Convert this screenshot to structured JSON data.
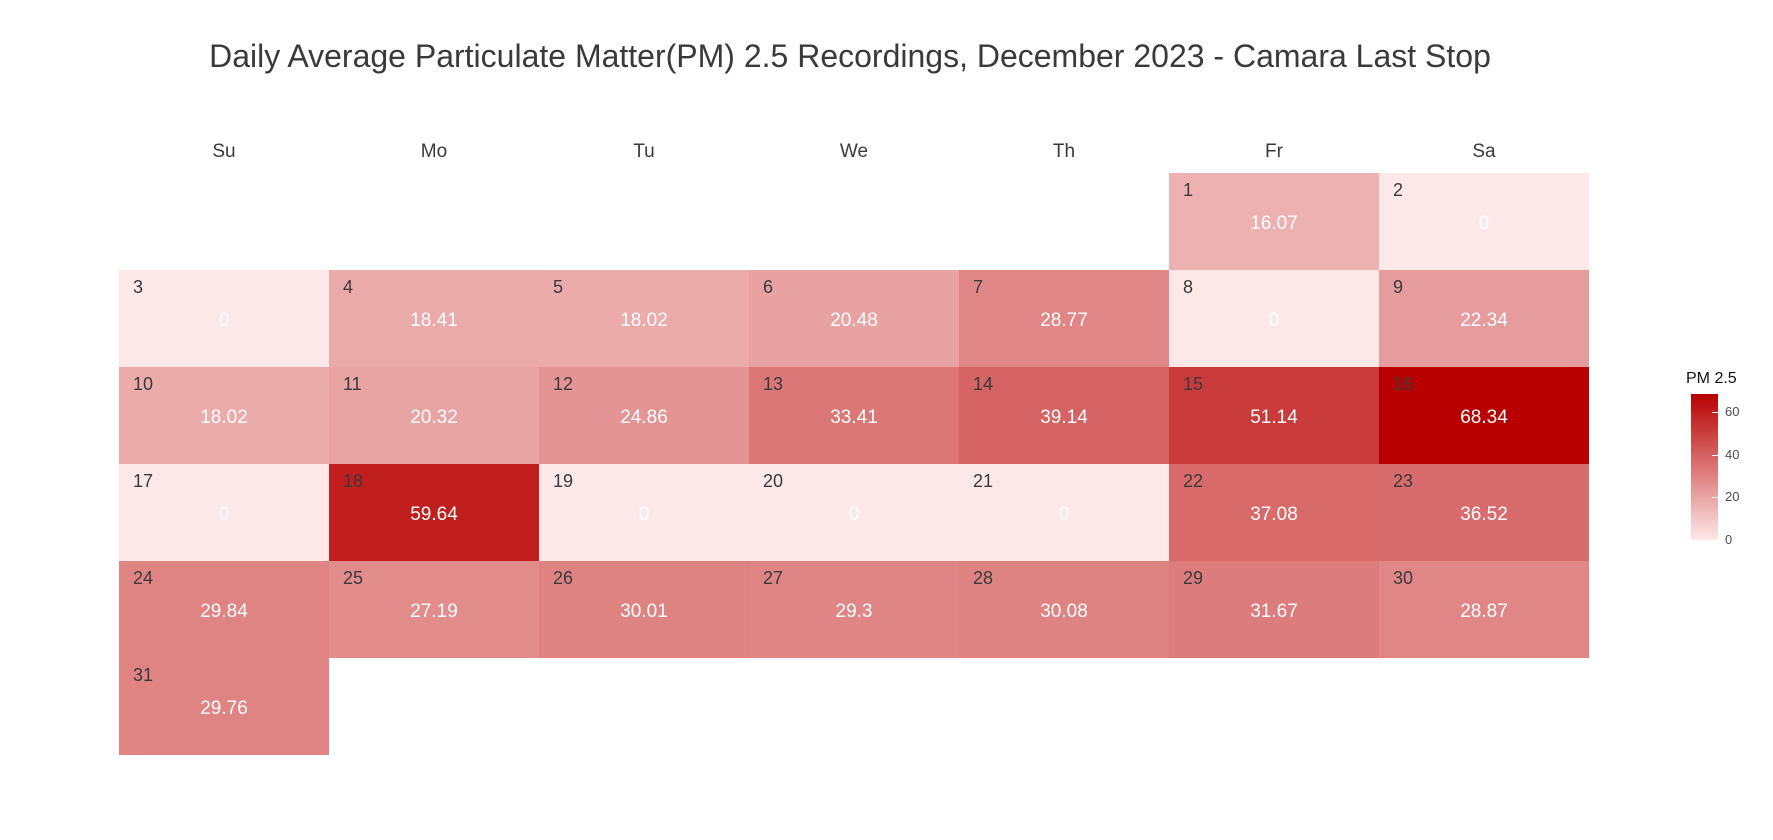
{
  "chart_data": {
    "type": "heatmap",
    "title": "Daily Average Particulate Matter(PM) 2.5 Recordings, December 2023 - Camara Last Stop",
    "weekdays": [
      "Su",
      "Mo",
      "Tu",
      "We",
      "Th",
      "Fr",
      "Sa"
    ],
    "first_weekday_index": 5,
    "days": [
      {
        "day": "1",
        "value": 16.07,
        "label": "16.07"
      },
      {
        "day": "2",
        "value": 0,
        "label": "0"
      },
      {
        "day": "3",
        "value": 0,
        "label": "0"
      },
      {
        "day": "4",
        "value": 18.41,
        "label": "18.41"
      },
      {
        "day": "5",
        "value": 18.02,
        "label": "18.02"
      },
      {
        "day": "6",
        "value": 20.48,
        "label": "20.48"
      },
      {
        "day": "7",
        "value": 28.77,
        "label": "28.77"
      },
      {
        "day": "8",
        "value": 0,
        "label": "0"
      },
      {
        "day": "9",
        "value": 22.34,
        "label": "22.34"
      },
      {
        "day": "10",
        "value": 18.02,
        "label": "18.02"
      },
      {
        "day": "11",
        "value": 20.32,
        "label": "20.32"
      },
      {
        "day": "12",
        "value": 24.86,
        "label": "24.86"
      },
      {
        "day": "13",
        "value": 33.41,
        "label": "33.41"
      },
      {
        "day": "14",
        "value": 39.14,
        "label": "39.14"
      },
      {
        "day": "15",
        "value": 51.14,
        "label": "51.14"
      },
      {
        "day": "16",
        "value": 68.34,
        "label": "68.34"
      },
      {
        "day": "17",
        "value": 0,
        "label": "0"
      },
      {
        "day": "18",
        "value": 59.64,
        "label": "59.64"
      },
      {
        "day": "19",
        "value": 0,
        "label": "0"
      },
      {
        "day": "20",
        "value": 0,
        "label": "0"
      },
      {
        "day": "21",
        "value": 0,
        "label": "0"
      },
      {
        "day": "22",
        "value": 37.08,
        "label": "37.08"
      },
      {
        "day": "23",
        "value": 36.52,
        "label": "36.52"
      },
      {
        "day": "24",
        "value": 29.84,
        "label": "29.84"
      },
      {
        "day": "25",
        "value": 27.19,
        "label": "27.19"
      },
      {
        "day": "26",
        "value": 30.01,
        "label": "30.01"
      },
      {
        "day": "27",
        "value": 29.3,
        "label": "29.3"
      },
      {
        "day": "28",
        "value": 30.08,
        "label": "30.08"
      },
      {
        "day": "29",
        "value": 31.67,
        "label": "31.67"
      },
      {
        "day": "30",
        "value": 28.87,
        "label": "28.87"
      },
      {
        "day": "31",
        "value": 29.76,
        "label": "29.76"
      }
    ],
    "legend": {
      "title": "PM 2.5",
      "ticks": [
        "0",
        "20",
        "40",
        "60"
      ],
      "tick_values": [
        0,
        20,
        40,
        60
      ],
      "range": [
        0,
        68.34
      ],
      "color_low": "#fde8e8",
      "color_high": "#b80000"
    },
    "text_colors": {
      "day_number": "#3a3a3a",
      "value_label": "#ffffff"
    }
  }
}
